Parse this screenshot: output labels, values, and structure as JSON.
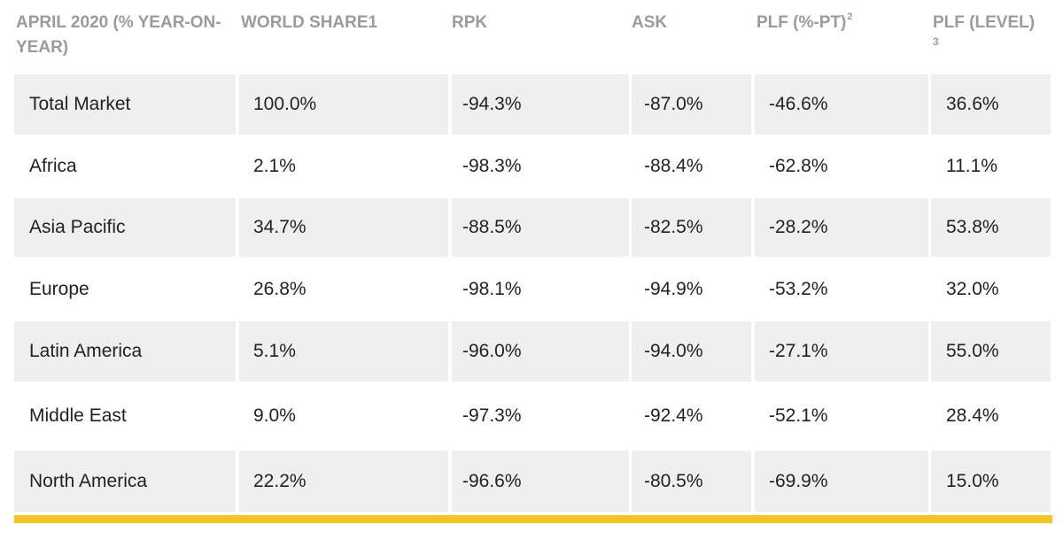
{
  "table": {
    "headers": [
      "APRIL 2020 (% YEAR-ON-YEAR)",
      "WORLD SHARE1",
      "RPK",
      "ASK",
      "PLF (%-PT)",
      "PLF (LEVEL)"
    ],
    "header_superscripts": {
      "plf_pt": "2",
      "plf_level": "3"
    },
    "rows": [
      [
        "Total Market",
        "100.0%",
        "-94.3%",
        "-87.0%",
        "-46.6%",
        "36.6%"
      ],
      [
        "Africa",
        "2.1%",
        "-98.3%",
        "-88.4%",
        "-62.8%",
        "11.1%"
      ],
      [
        "Asia Pacific",
        "34.7%",
        "-88.5%",
        "-82.5%",
        "-28.2%",
        "53.8%"
      ],
      [
        "Europe",
        "26.8%",
        "-98.1%",
        "-94.9%",
        "-53.2%",
        "32.0%"
      ],
      [
        "Latin America",
        "5.1%",
        "-96.0%",
        "-94.0%",
        "-27.1%",
        "55.0%"
      ],
      [
        "Middle East",
        "9.0%",
        "-97.3%",
        "-92.4%",
        "-52.1%",
        "28.4%"
      ],
      [
        "North America",
        "22.2%",
        "-96.6%",
        "-80.5%",
        "-69.9%",
        "15.0%"
      ]
    ]
  },
  "colors": {
    "header_text": "#9b9b9b",
    "row_shade": "#efefef",
    "accent_bar": "#f2c524"
  }
}
